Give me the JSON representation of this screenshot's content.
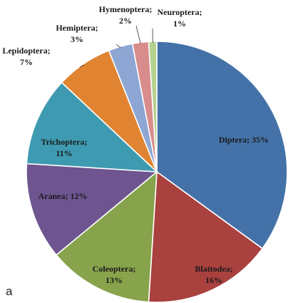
{
  "panel_letter": "a",
  "chart_data": {
    "type": "pie",
    "title": "",
    "start_angle_deg": 0,
    "direction": "clockwise",
    "legend": "none",
    "slices": [
      {
        "name": "Diptera",
        "value": 35,
        "label_line1": "Diptera; 35%",
        "label_line2": "",
        "color": "#4472a8"
      },
      {
        "name": "Blattodea",
        "value": 16,
        "label_line1": "Blattodea;",
        "label_line2": "16%",
        "color": "#a9413f"
      },
      {
        "name": "Coleoptera",
        "value": 13,
        "label_line1": "Coleoptera;",
        "label_line2": "13%",
        "color": "#87a34b"
      },
      {
        "name": "Aranea",
        "value": 12,
        "label_line1": "Aranea; 12%",
        "label_line2": "",
        "color": "#6e5590"
      },
      {
        "name": "Trichoptera",
        "value": 11,
        "label_line1": "Trichoptera;",
        "label_line2": "11%",
        "color": "#3e9ab0"
      },
      {
        "name": "Lepidoptera",
        "value": 7,
        "label_line1": "Lepidoptera;",
        "label_line2": "7%",
        "color": "#e08432"
      },
      {
        "name": "Hemiptera",
        "value": 3,
        "label_line1": "Hemiptera;",
        "label_line2": "3%",
        "color": "#8ea6d3"
      },
      {
        "name": "Hymenoptera",
        "value": 2,
        "label_line1": "Hymenoptera;",
        "label_line2": "2%",
        "color": "#d88d8c"
      },
      {
        "name": "Neuroptera",
        "value": 1,
        "label_line1": "Neuroptera;",
        "label_line2": "1%",
        "color": "#b6d190"
      }
    ]
  }
}
